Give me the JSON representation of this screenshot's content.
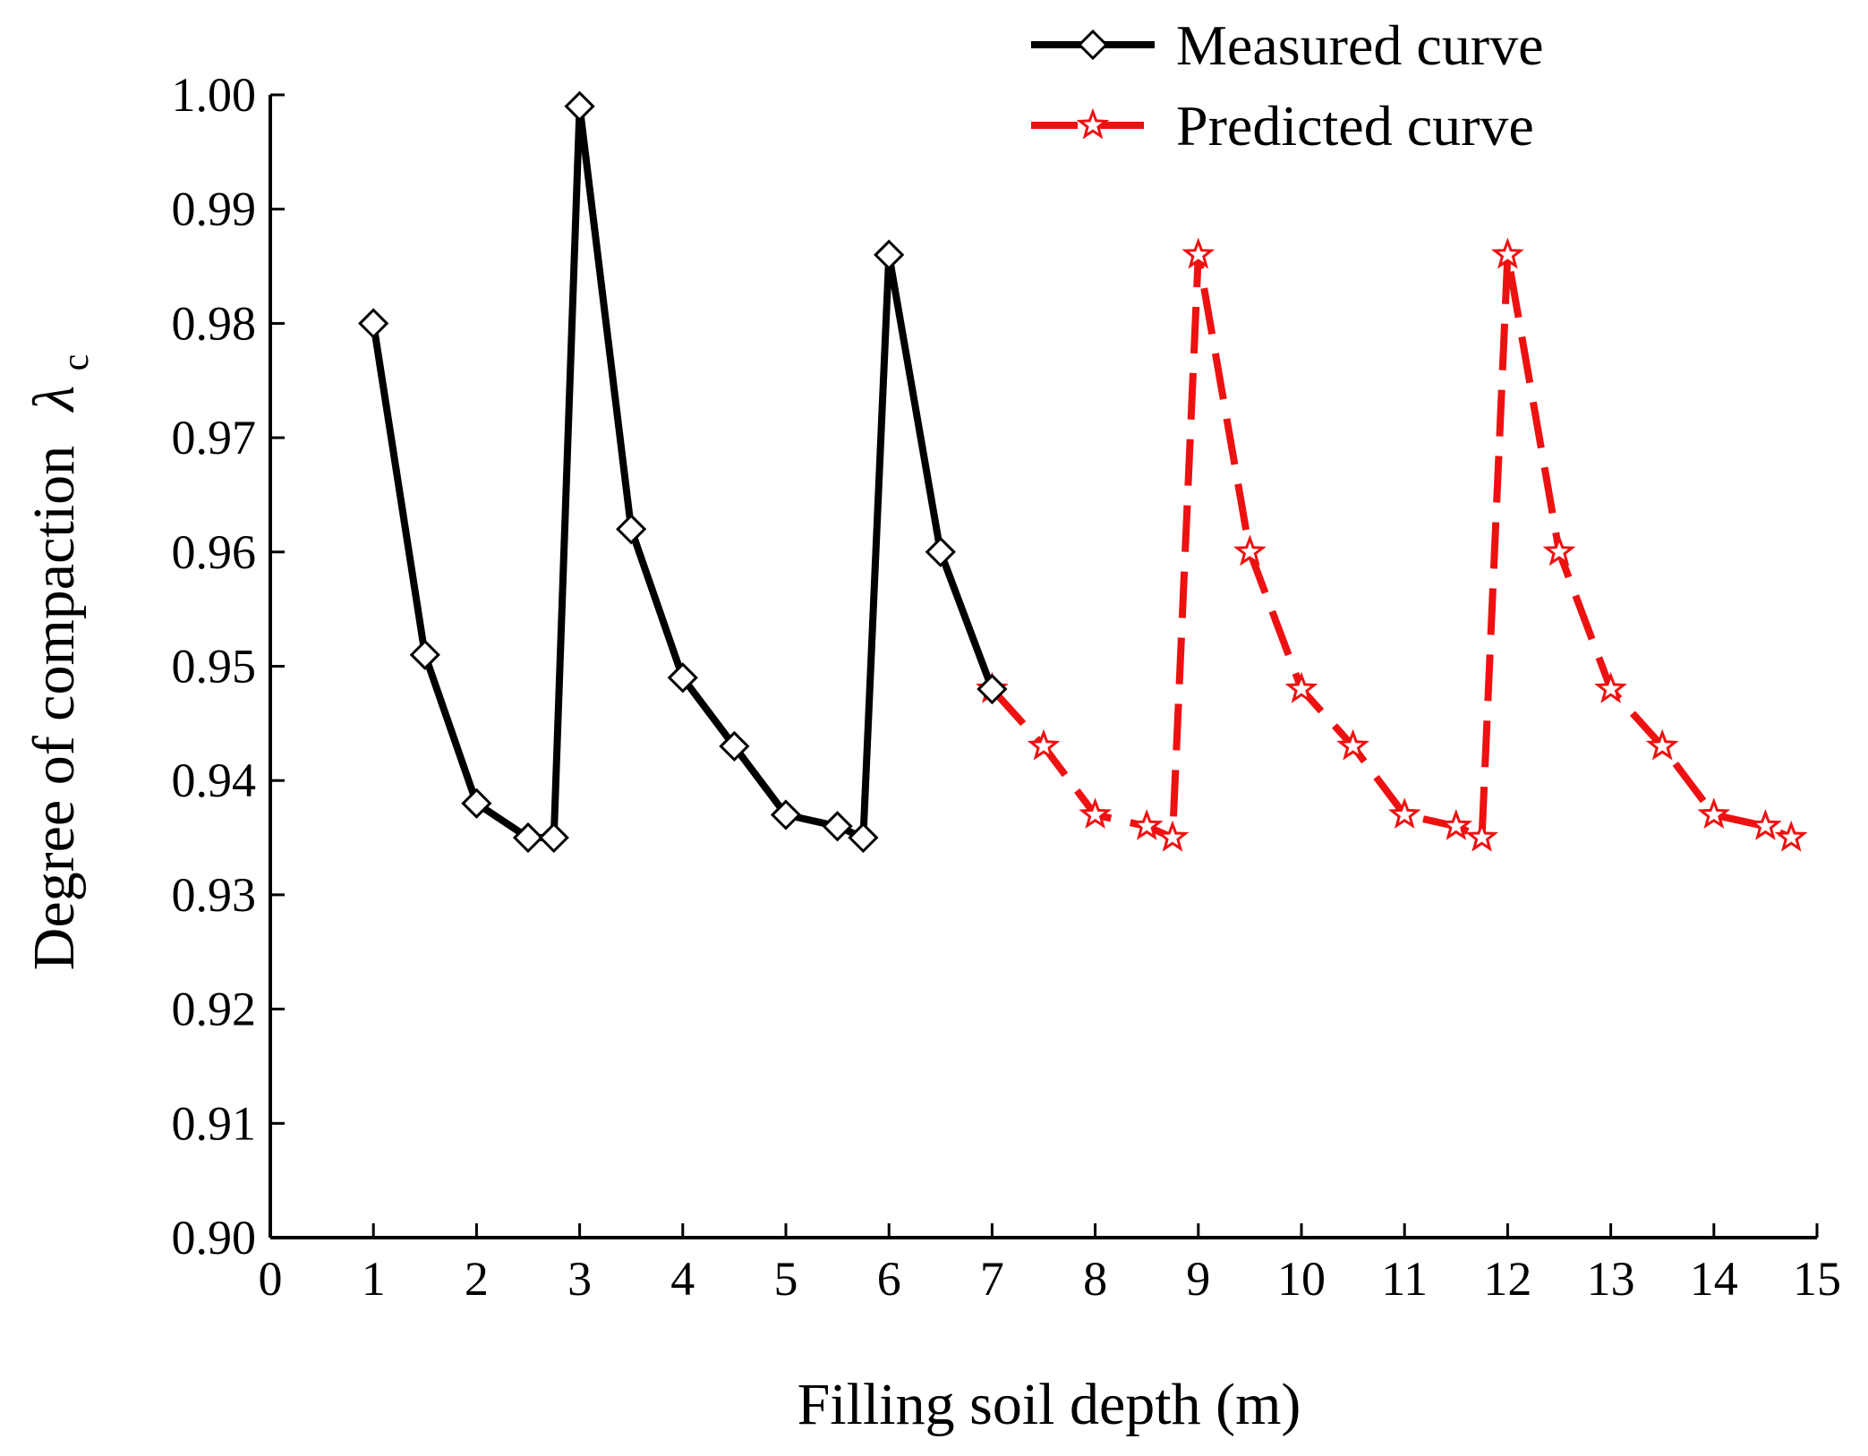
{
  "chart_data": {
    "type": "line",
    "title": "",
    "xlabel": "Filling soil depth (m)",
    "ylabel": "Degree of compaction",
    "ylabel_symbol": "λ",
    "ylabel_subscript": "c",
    "xlim": [
      0,
      15
    ],
    "ylim": [
      0.9,
      1.0
    ],
    "x_ticks": [
      0,
      1,
      2,
      3,
      4,
      5,
      6,
      7,
      8,
      9,
      10,
      11,
      12,
      13,
      14,
      15
    ],
    "x_tick_labels": [
      "0",
      "1",
      "2",
      "3",
      "4",
      "5",
      "6",
      "7",
      "8",
      "9",
      "10",
      "11",
      "12",
      "13",
      "14",
      "15"
    ],
    "y_ticks": [
      0.9,
      0.91,
      0.92,
      0.93,
      0.94,
      0.95,
      0.96,
      0.97,
      0.98,
      0.99,
      1.0
    ],
    "y_tick_labels": [
      "0.90",
      "0.91",
      "0.92",
      "0.93",
      "0.94",
      "0.95",
      "0.96",
      "0.97",
      "0.98",
      "0.99",
      "1.00"
    ],
    "grid": false,
    "legend_position": "top-right",
    "series": [
      {
        "name": "Measured curve",
        "color": "#000000",
        "line_style": "solid",
        "marker": "diamond",
        "x": [
          1,
          1.5,
          2,
          2.5,
          2.75,
          3,
          3.5,
          4,
          4.5,
          5,
          5.5,
          5.75,
          6,
          6.5,
          7
        ],
        "y": [
          0.98,
          0.951,
          0.938,
          0.935,
          0.935,
          0.999,
          0.962,
          0.949,
          0.943,
          0.937,
          0.936,
          0.935,
          0.986,
          0.96,
          0.948
        ]
      },
      {
        "name": "Predicted curve",
        "color": "#ee1111",
        "line_style": "dashed",
        "marker": "star",
        "x": [
          7,
          7.5,
          8,
          8.5,
          8.75,
          9,
          9.5,
          10,
          10.5,
          11,
          11.5,
          11.75,
          12,
          12.5,
          13,
          13.5,
          14,
          14.5,
          14.75
        ],
        "y": [
          0.948,
          0.943,
          0.937,
          0.936,
          0.935,
          0.986,
          0.96,
          0.948,
          0.943,
          0.937,
          0.936,
          0.935,
          0.986,
          0.96,
          0.948,
          0.943,
          0.937,
          0.936,
          0.935
        ]
      }
    ]
  }
}
